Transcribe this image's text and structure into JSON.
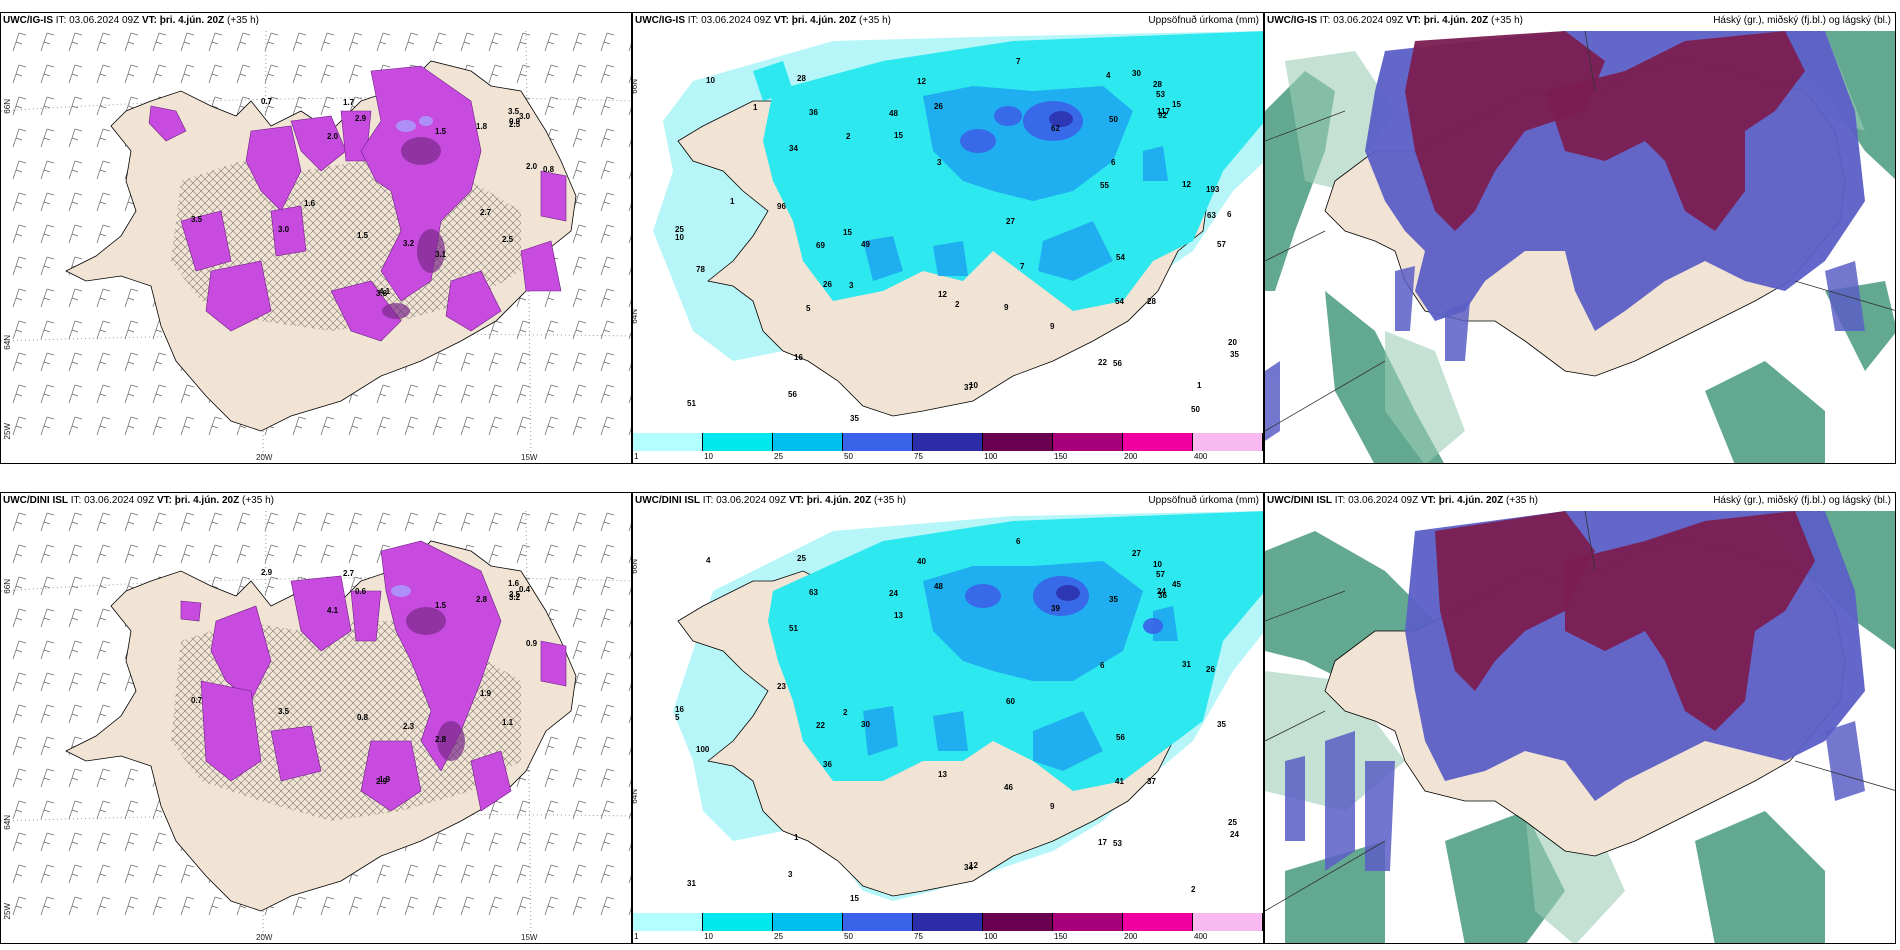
{
  "panels": {
    "top_left": {
      "model": "UWC/IG-IS",
      "it": "IT: 03.06.2024 09Z",
      "vt_label": "VT:",
      "vt": "þri. 4.jún. 20Z",
      "lead": "(+35 h)"
    },
    "top_mid": {
      "model": "UWC/IG-IS",
      "it": "IT: 03.06.2024 09Z",
      "vt_label": "VT:",
      "vt": "þri. 4.jún. 20Z",
      "lead": "(+35 h)",
      "right": "Uppsöfnuð úrkoma (mm)"
    },
    "top_right": {
      "model": "UWC/IG-IS",
      "it": "IT: 03.06.2024 09Z",
      "vt_label": "VT:",
      "vt": "þri. 4.jún. 20Z",
      "lead": "(+35 h)",
      "right": "Háský (gr.), miðský (fj.bl.) og lágský (bl.)"
    },
    "bot_left": {
      "model": "UWC/DINI ISL",
      "it": "IT: 03.06.2024 09Z",
      "vt_label": "VT:",
      "vt": "þri. 4.jún. 20Z",
      "lead": "(+35 h)"
    },
    "bot_mid": {
      "model": "UWC/DINI ISL",
      "it": "IT: 03.06.2024 09Z",
      "vt_label": "VT:",
      "vt": "þri. 4.jún. 20Z",
      "lead": "(+35 h)",
      "right": "Uppsöfnuð úrkoma (mm)"
    },
    "bot_right": {
      "model": "UWC/DINI ISL",
      "it": "IT: 03.06.2024 09Z",
      "vt_label": "VT:",
      "vt": "þri. 4.jún. 20Z",
      "lead": "(+35 h)",
      "right": "Háský (gr.), miðský (fj.bl.) og lágský (bl.)"
    }
  },
  "axes": {
    "lat_top": "66N",
    "lat_bot": "64N",
    "lat_corner": "25W",
    "lon_a": "20W",
    "lon_b": "15W"
  },
  "colorbar": {
    "labels": [
      "1",
      "10",
      "25",
      "50",
      "75",
      "100",
      "150",
      "200",
      "400"
    ],
    "colors": [
      "#b3ffff",
      "#00e8ee",
      "#00c0f0",
      "#3a62e8",
      "#2c2ca8",
      "#6a0050",
      "#a8007a",
      "#f000a0",
      "#f8b8f0"
    ]
  },
  "palette": {
    "land": "#f1e4d4",
    "precip_light": "#b7f6f8",
    "precip_mid": "#2ee8ef",
    "precip_heavy": "#1ea8f0",
    "purple": "#c84be0",
    "cloud_high": "#7b1e52",
    "cloud_mid": "#5b5fc6",
    "cloud_low": "#2f8b6b"
  },
  "values": {
    "top_left": [
      "2.0",
      "4.1",
      "3.8",
      "3.0",
      "1.7",
      "2.5",
      "3.2",
      "2.0",
      "1.5",
      "3.1",
      "0.7",
      "1.8",
      "3.5",
      "2.7",
      "3.5",
      "2.9",
      "3.0",
      "1.5",
      "2.5",
      "0.9",
      "0.8",
      "1.6"
    ],
    "top_mid": [
      "15",
      "10",
      "37",
      "26",
      "12",
      "28",
      "9",
      "12",
      "12",
      "9",
      "28",
      "50",
      "53",
      "54",
      "78",
      "26",
      "15",
      "62",
      "92",
      "117",
      "193",
      "49",
      "51",
      "96",
      "69",
      "56",
      "54",
      "57",
      "48",
      "25",
      "22",
      "34",
      "36",
      "35",
      "27",
      "30",
      "20",
      "28",
      "10",
      "10",
      "15",
      "16",
      "7",
      "35",
      "55",
      "50",
      "56",
      "63",
      "2",
      "3",
      "1",
      "1",
      "6",
      "7",
      "4",
      "2",
      "6",
      "3",
      "5",
      "1"
    ],
    "bot_left": [
      "4.1",
      "1.9",
      "2.9",
      "3.5",
      "2.7",
      "1.1",
      "2.3",
      "0.9",
      "0.8",
      "2.8",
      "2.9",
      "2.8",
      "1.6",
      "1.9",
      "0.7",
      "0.6",
      "0.4",
      "1.5",
      "3.2",
      "2.5"
    ],
    "bot_mid": [
      "13",
      "12",
      "34",
      "36",
      "40",
      "37",
      "46",
      "31",
      "13",
      "9",
      "25",
      "35",
      "57",
      "56",
      "100",
      "48",
      "45",
      "39",
      "36",
      "24",
      "26",
      "30",
      "31",
      "23",
      "22",
      "53",
      "41",
      "35",
      "24",
      "16",
      "17",
      "51",
      "63",
      "24",
      "60",
      "27",
      "25",
      "10",
      "5",
      "4",
      "2",
      "1",
      "6",
      "15",
      "6",
      "2",
      "3"
    ]
  }
}
